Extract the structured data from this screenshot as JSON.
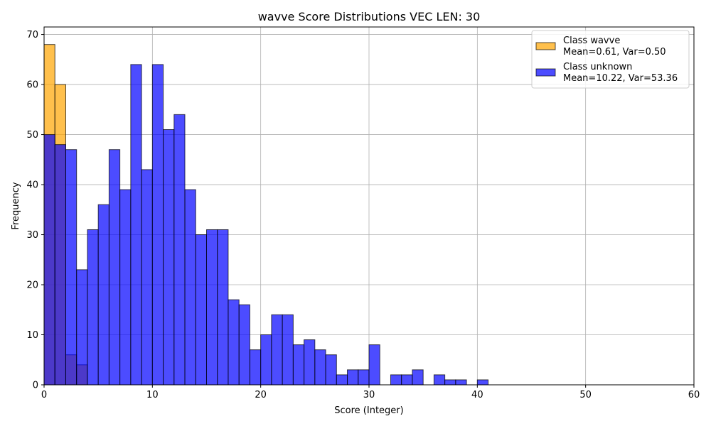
{
  "chart_data": {
    "type": "bar",
    "title": "wavve Score Distributions VEC LEN: 30",
    "xlabel": "Score (Integer)",
    "ylabel": "Frequency",
    "xlim": [
      0,
      60
    ],
    "ylim": [
      0,
      71.5
    ],
    "xticks": [
      0,
      10,
      20,
      30,
      40,
      50,
      60
    ],
    "yticks": [
      0,
      10,
      20,
      30,
      40,
      50,
      60,
      70
    ],
    "grid": true,
    "legend_position": "top-right",
    "bin_width": 1,
    "series": [
      {
        "name": "Class wavve",
        "stats": "Mean=0.61, Var=0.50",
        "color": "#FFA500",
        "bins": [
          0,
          1,
          2,
          3
        ],
        "values": [
          68,
          60,
          6,
          4
        ]
      },
      {
        "name": "Class unknown",
        "stats": "Mean=10.22, Var=53.36",
        "color": "#0000FF",
        "bins": [
          0,
          1,
          2,
          3,
          4,
          5,
          6,
          7,
          8,
          9,
          10,
          11,
          12,
          13,
          14,
          15,
          16,
          17,
          18,
          19,
          20,
          21,
          22,
          23,
          24,
          25,
          26,
          27,
          28,
          29,
          30,
          31,
          32,
          33,
          34,
          35,
          36,
          37,
          38,
          39,
          40
        ],
        "values": [
          50,
          48,
          47,
          23,
          31,
          36,
          47,
          39,
          64,
          43,
          64,
          51,
          54,
          39,
          30,
          31,
          31,
          17,
          16,
          7,
          10,
          14,
          14,
          8,
          9,
          7,
          6,
          2,
          3,
          3,
          8,
          0,
          2,
          2,
          3,
          0,
          2,
          1,
          1,
          0,
          1
        ]
      }
    ]
  }
}
